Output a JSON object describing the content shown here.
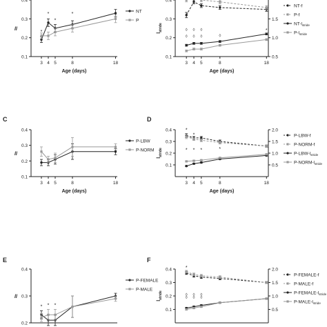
{
  "chart_data": [
    {
      "panel": "A",
      "panel_label_visible": false,
      "type": "line",
      "x": [
        3,
        4,
        5,
        8,
        18
      ],
      "xlabel": "Age (days)",
      "ylabel": "ll",
      "ylim": [
        0.1,
        0.4
      ],
      "yticks": [
        "0.1",
        "0.2",
        "0.3",
        "0.4"
      ],
      "show_top_tick": false,
      "xticks": [
        "3",
        "4",
        "5",
        "8",
        "18"
      ],
      "legend": "right",
      "series": [
        {
          "name": "NT",
          "values": [
            0.19,
            0.28,
            0.25,
            0.27,
            0.33
          ],
          "err": [
            0.015,
            0.02,
            0.02,
            0.02,
            0.02
          ],
          "dash": false,
          "color": "#222222",
          "marker": "circle"
        },
        {
          "name": "P",
          "values": [
            0.21,
            0.21,
            0.23,
            0.25,
            0.3
          ],
          "err": [
            0.015,
            0.02,
            0.02,
            0.02,
            0.02
          ],
          "dash": false,
          "color": "#999999",
          "marker": "square"
        }
      ],
      "annotations": [
        {
          "x": 3,
          "y": 0.225,
          "t": "*"
        },
        {
          "x": 4,
          "y": 0.32,
          "t": "*"
        },
        {
          "x": 5,
          "y": 0.285,
          "t": "*"
        },
        {
          "x": 8,
          "y": 0.32,
          "t": "*"
        }
      ]
    },
    {
      "panel": "B",
      "panel_label_visible": false,
      "type": "line",
      "x": [
        3,
        4,
        5,
        8,
        18
      ],
      "xlabel": "Age (days)",
      "ylabel": "l_stride",
      "ylim": [
        0.1,
        0.4
      ],
      "yticks": [
        "0.1",
        "0.2",
        "0.3",
        "0.4"
      ],
      "show_top_tick": false,
      "y2lim": [
        0.5,
        2.0
      ],
      "y2ticks": [
        "0.5",
        "1.0",
        "1.5"
      ],
      "xticks": [
        "3",
        "4",
        "5",
        "8",
        "18"
      ],
      "legend": "right",
      "series": [
        {
          "name": "NT-f",
          "axis": "right",
          "values": [
            1.6,
            1.95,
            1.85,
            1.8,
            1.75
          ],
          "err": [
            0.07,
            0.05,
            0.05,
            0.05,
            0.05
          ],
          "dash": true,
          "color": "#222222",
          "marker": "circle"
        },
        {
          "name": "P-f",
          "axis": "right",
          "values": [
            2.0,
            2.05,
            2.0,
            1.95,
            1.8
          ],
          "err": [
            0.05,
            0.05,
            0.05,
            0.05,
            0.05
          ],
          "dash": true,
          "color": "#999999",
          "marker": "square"
        },
        {
          "name": "NT-l",
          "sub": "stride",
          "axis": "left",
          "values": [
            0.16,
            0.17,
            0.17,
            0.18,
            0.22
          ],
          "err": [
            0.005,
            0.005,
            0.005,
            0.005,
            0.005
          ],
          "dash": false,
          "color": "#222222",
          "marker": "circle"
        },
        {
          "name": "P-l",
          "sub": "stride",
          "axis": "left",
          "values": [
            0.13,
            0.14,
            0.14,
            0.16,
            0.19
          ],
          "err": [
            0.005,
            0.005,
            0.005,
            0.005,
            0.005
          ],
          "dash": false,
          "color": "#999999",
          "marker": "square"
        }
      ],
      "annotations": [
        {
          "x": 3,
          "y": 0.235,
          "t": "◊"
        },
        {
          "x": 4,
          "y": 0.235,
          "t": "◊"
        },
        {
          "x": 5,
          "y": 0.235,
          "t": "◊"
        },
        {
          "x": 3,
          "y": 0.2,
          "t": "◊"
        },
        {
          "x": 4,
          "y": 0.2,
          "t": "◊"
        },
        {
          "x": 5,
          "y": 0.2,
          "t": "◊"
        },
        {
          "x": 4,
          "y": 0.4,
          "t": "◊"
        },
        {
          "x": 4,
          "y": 0.385,
          "t": "◊"
        },
        {
          "x": 8,
          "y": 0.205,
          "t": "◊"
        },
        {
          "x": 18,
          "y": 0.232,
          "t": "*"
        }
      ]
    },
    {
      "panel": "C",
      "panel_label_visible": true,
      "type": "line",
      "x": [
        3,
        4,
        5,
        8,
        18
      ],
      "xlabel": "Age (days)",
      "ylabel": "ll",
      "ylim": [
        0.1,
        0.4
      ],
      "yticks": [
        "0.1",
        "0.2",
        "0.3",
        "0.4"
      ],
      "show_top_tick": true,
      "xticks": [
        "3",
        "4",
        "5",
        "8",
        "18"
      ],
      "legend": "right",
      "series": [
        {
          "name": "P-LBW",
          "values": [
            0.19,
            0.19,
            0.21,
            0.26,
            0.26
          ],
          "err": [
            0.02,
            0.02,
            0.03,
            0.05,
            0.02
          ],
          "dash": false,
          "color": "#222222",
          "marker": "circle"
        },
        {
          "name": "P-NORM",
          "values": [
            0.26,
            0.21,
            0.22,
            0.29,
            0.29
          ],
          "err": [
            0.03,
            0.02,
            0.03,
            0.06,
            0.02
          ],
          "dash": false,
          "color": "#999999",
          "marker": "square"
        }
      ],
      "annotations": []
    },
    {
      "panel": "D",
      "panel_label_visible": true,
      "type": "line",
      "x": [
        3,
        4,
        5,
        8,
        18
      ],
      "xlabel": "Age (days)",
      "ylabel": "l_stride",
      "ylim": [
        0.0,
        0.4
      ],
      "yticks": [
        "0.1",
        "0.2",
        "0.3",
        "0.4"
      ],
      "show_top_tick": true,
      "y2lim": [
        0.0,
        2.0
      ],
      "y2ticks": [
        "0.5",
        "1.0",
        "1.5",
        "2.0"
      ],
      "xticks": [
        "3",
        "4",
        "5",
        "8",
        "18"
      ],
      "legend": "right",
      "series": [
        {
          "name": "P-LBW-f",
          "axis": "right",
          "values": [
            1.75,
            1.65,
            1.65,
            1.5,
            1.3
          ],
          "err": [
            0.08,
            0.06,
            0.06,
            0.06,
            0.05
          ],
          "dash": true,
          "color": "#222222",
          "marker": "circle"
        },
        {
          "name": "P-NORM-f",
          "axis": "right",
          "values": [
            1.7,
            1.6,
            1.55,
            1.45,
            1.3
          ],
          "err": [
            0.08,
            0.06,
            0.06,
            0.06,
            0.05
          ],
          "dash": true,
          "color": "#999999",
          "marker": "square"
        },
        {
          "name": "P-LBW-l",
          "sub": "stride",
          "axis": "left",
          "values": [
            0.09,
            0.11,
            0.12,
            0.15,
            0.18
          ],
          "err": [
            0.005,
            0.005,
            0.005,
            0.005,
            0.005
          ],
          "dash": false,
          "color": "#222222",
          "marker": "circle"
        },
        {
          "name": "P-NORM-l",
          "sub": "stride",
          "axis": "left",
          "values": [
            0.13,
            0.135,
            0.14,
            0.16,
            0.19
          ],
          "err": [
            0.005,
            0.005,
            0.005,
            0.005,
            0.005
          ],
          "dash": false,
          "color": "#999999",
          "marker": "square"
        }
      ],
      "annotations": [
        {
          "x": 3,
          "y": 0.385,
          "t": "*"
        },
        {
          "x": 4,
          "y": 0.345,
          "t": "*"
        },
        {
          "x": 3,
          "y": 0.215,
          "t": "*"
        },
        {
          "x": 4,
          "y": 0.215,
          "t": "*"
        },
        {
          "x": 5,
          "y": 0.215,
          "t": "*"
        },
        {
          "x": 8,
          "y": 0.225,
          "t": "*"
        }
      ]
    },
    {
      "panel": "E",
      "panel_label_visible": true,
      "type": "line",
      "x": [
        3,
        4,
        5,
        8,
        18
      ],
      "xlabel": "",
      "ylabel": "ll",
      "ylim": [
        0.2,
        0.4
      ],
      "yticks": [
        "0.2",
        "0.3",
        "0.4"
      ],
      "show_top_tick": true,
      "xticks": [],
      "legend": "right",
      "series": [
        {
          "name": "P-FEMALE",
          "values": [
            0.23,
            0.21,
            0.21,
            0.26,
            0.3
          ],
          "err": [
            0.015,
            0.02,
            0.02,
            0.04,
            0.01
          ],
          "dash": false,
          "color": "#222222",
          "marker": "circle"
        },
        {
          "name": "P-MALE",
          "values": [
            0.22,
            0.23,
            0.23,
            0.26,
            0.29
          ],
          "err": [
            0.015,
            0.02,
            0.02,
            0.04,
            0.01
          ],
          "dash": false,
          "color": "#999999",
          "marker": "square"
        }
      ],
      "annotations": [
        {
          "x": 3,
          "y": 0.255,
          "t": "*"
        },
        {
          "x": 4,
          "y": 0.26,
          "t": "*"
        },
        {
          "x": 5,
          "y": 0.26,
          "t": "*"
        }
      ]
    },
    {
      "panel": "F",
      "panel_label_visible": true,
      "type": "line",
      "x": [
        3,
        4,
        5,
        8,
        18
      ],
      "xlabel": "",
      "ylabel": "l_stride",
      "ylim": [
        0.0,
        0.4
      ],
      "yticks": [
        "0.1",
        "0.2",
        "0.3",
        "0.4"
      ],
      "show_top_tick": true,
      "y2lim": [
        0.0,
        2.0
      ],
      "y2ticks": [
        "0.5",
        "1.0",
        "1.5",
        "2.0"
      ],
      "xticks": [],
      "legend": "right",
      "series": [
        {
          "name": "P-FEMALE-f",
          "axis": "right",
          "values": [
            1.85,
            1.75,
            1.7,
            1.65,
            1.5
          ],
          "err": [
            0.05,
            0.05,
            0.05,
            0.05,
            0.04
          ],
          "dash": true,
          "color": "#222222",
          "marker": "circle"
        },
        {
          "name": "P-MALE-f",
          "axis": "right",
          "values": [
            1.9,
            1.8,
            1.75,
            1.7,
            1.5
          ],
          "err": [
            0.05,
            0.05,
            0.05,
            0.05,
            0.04
          ],
          "dash": true,
          "color": "#999999",
          "marker": "square"
        },
        {
          "name": "P-FEMALE-l",
          "sub": "stride",
          "axis": "left",
          "values": [
            0.11,
            0.12,
            0.13,
            0.15,
            0.18
          ],
          "err": [
            0.005,
            0.005,
            0.005,
            0.005,
            0.005
          ],
          "dash": false,
          "color": "#222222",
          "marker": "circle"
        },
        {
          "name": "P-MALE-l",
          "sub": "stride",
          "axis": "left",
          "values": [
            0.1,
            0.11,
            0.12,
            0.15,
            0.18
          ],
          "err": [
            0.005,
            0.005,
            0.005,
            0.005,
            0.005
          ],
          "dash": false,
          "color": "#999999",
          "marker": "square"
        }
      ],
      "annotations": [
        {
          "x": 3,
          "y": 0.4,
          "t": "*"
        },
        {
          "x": 3,
          "y": 0.2,
          "t": "◊"
        },
        {
          "x": 4,
          "y": 0.2,
          "t": "◊"
        },
        {
          "x": 5,
          "y": 0.2,
          "t": "◊"
        },
        {
          "x": 3,
          "y": 0.18,
          "t": "◊"
        },
        {
          "x": 4,
          "y": 0.18,
          "t": "◊"
        },
        {
          "x": 5,
          "y": 0.18,
          "t": "◊"
        }
      ]
    }
  ]
}
